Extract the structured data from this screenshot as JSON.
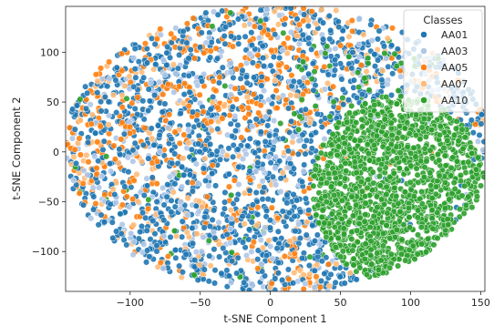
{
  "chart_data": {
    "type": "scatter",
    "title": "",
    "xlabel": "t-SNE Component 1",
    "ylabel": "t-SNE Component 2",
    "xlim": [
      -146,
      153
    ],
    "ylim": [
      -140,
      146
    ],
    "xticks": [
      -100,
      -50,
      0,
      50,
      100,
      150
    ],
    "yticks": [
      -100,
      -50,
      0,
      50,
      100
    ],
    "xtick_labels": [
      "−100",
      "−50",
      "0",
      "50",
      "100",
      "150"
    ],
    "ytick_labels": [
      "−100",
      "−50",
      "0",
      "50",
      "100"
    ],
    "grid": false,
    "legend": {
      "title": "Classes",
      "placement": "top-right",
      "entries": [
        "AA01",
        "AA03",
        "AA05",
        "AA07",
        "AA10"
      ]
    },
    "series": [
      {
        "name": "AA01",
        "color": "#1f77b4",
        "region": {
          "shape": "ellipse",
          "center": [
            -20,
            5
          ],
          "radius": [
            120,
            135
          ]
        }
      },
      {
        "name": "AA03",
        "color": "#aec7e8",
        "region": {
          "shape": "ellipse",
          "center": [
            -30,
            10
          ],
          "radius": [
            115,
            130
          ]
        }
      },
      {
        "name": "AA05",
        "color": "#ff7f0e",
        "region": {
          "shape": "ellipse",
          "center": [
            -55,
            30
          ],
          "radius": [
            90,
            110
          ]
        }
      },
      {
        "name": "AA07",
        "color": "#ffbb78",
        "region": {
          "shape": "ellipse",
          "center": [
            -50,
            20
          ],
          "radius": [
            95,
            115
          ]
        }
      },
      {
        "name": "AA10",
        "color": "#2ca02c",
        "region": {
          "shape": "ellipse",
          "center": [
            90,
            -35
          ],
          "radius": [
            60,
            95
          ]
        }
      }
    ]
  }
}
